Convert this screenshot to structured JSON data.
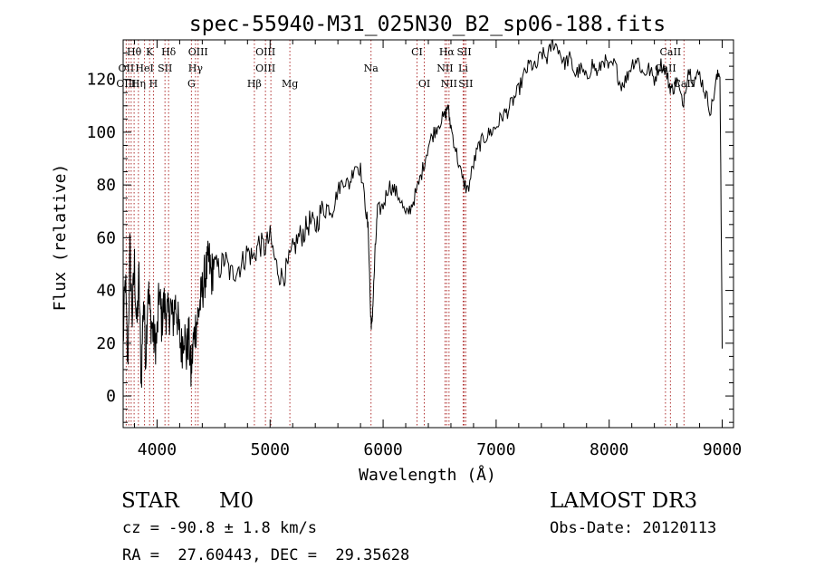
{
  "chart_data": {
    "type": "line",
    "title": "spec-55940-M31_025N30_B2_sp06-188.fits",
    "xlabel": "Wavelength (Å)",
    "ylabel": "Flux (relative)",
    "xlim": [
      3700,
      9100
    ],
    "ylim": [
      -12,
      135
    ],
    "xticks": [
      4000,
      5000,
      6000,
      7000,
      8000,
      9000
    ],
    "yticks": [
      0,
      20,
      40,
      60,
      80,
      100,
      120
    ],
    "series": [
      {
        "name": "flux",
        "x": [
          3700,
          3720,
          3740,
          3760,
          3780,
          3800,
          3820,
          3840,
          3860,
          3880,
          3900,
          3920,
          3940,
          3960,
          3980,
          4000,
          4020,
          4040,
          4060,
          4080,
          4100,
          4120,
          4140,
          4160,
          4180,
          4200,
          4220,
          4240,
          4260,
          4280,
          4300,
          4320,
          4340,
          4360,
          4380,
          4400,
          4420,
          4440,
          4460,
          4480,
          4500,
          4550,
          4600,
          4650,
          4700,
          4750,
          4800,
          4850,
          4900,
          4950,
          5000,
          5050,
          5100,
          5150,
          5200,
          5250,
          5300,
          5350,
          5400,
          5450,
          5500,
          5550,
          5600,
          5650,
          5700,
          5750,
          5800,
          5850,
          5870,
          5890,
          5900,
          5910,
          5930,
          5950,
          6000,
          6050,
          6100,
          6150,
          6200,
          6250,
          6300,
          6350,
          6400,
          6450,
          6500,
          6550,
          6570,
          6600,
          6650,
          6700,
          6750,
          6800,
          6850,
          6900,
          6950,
          7000,
          7050,
          7100,
          7150,
          7200,
          7250,
          7300,
          7350,
          7400,
          7450,
          7500,
          7550,
          7600,
          7650,
          7700,
          7750,
          7800,
          7850,
          7900,
          7950,
          8000,
          8050,
          8100,
          8150,
          8200,
          8250,
          8300,
          8350,
          8400,
          8450,
          8500,
          8530,
          8560,
          8600,
          8650,
          8700,
          8750,
          8800,
          8850,
          8900,
          8950,
          8980,
          9000
        ],
        "y": [
          20,
          45,
          10,
          55,
          30,
          50,
          25,
          45,
          5,
          38,
          15,
          42,
          30,
          25,
          20,
          22,
          40,
          28,
          35,
          32,
          30,
          34,
          28,
          36,
          30,
          22,
          18,
          26,
          15,
          24,
          8,
          20,
          26,
          30,
          35,
          40,
          45,
          48,
          52,
          45,
          50,
          48,
          52,
          46,
          48,
          50,
          55,
          52,
          58,
          56,
          60,
          50,
          45,
          48,
          55,
          60,
          62,
          66,
          64,
          70,
          72,
          70,
          78,
          82,
          80,
          88,
          86,
          70,
          62,
          30,
          26,
          35,
          55,
          70,
          72,
          80,
          78,
          75,
          68,
          72,
          78,
          86,
          95,
          100,
          104,
          106,
          110,
          102,
          92,
          82,
          78,
          88,
          95,
          98,
          100,
          102,
          106,
          108,
          112,
          116,
          122,
          126,
          124,
          130,
          128,
          134,
          132,
          126,
          128,
          122,
          124,
          120,
          126,
          122,
          128,
          124,
          126,
          118,
          120,
          126,
          128,
          122,
          124,
          120,
          126,
          124,
          118,
          116,
          120,
          110,
          124,
          120,
          122,
          115,
          108,
          120,
          123,
          18
        ]
      }
    ],
    "line_markers": [
      {
        "label": "Hθ",
        "wavelength": 3797,
        "row": 1
      },
      {
        "label": "K",
        "wavelength": 3934,
        "row": 1
      },
      {
        "label": "Hδ",
        "wavelength": 4102,
        "row": 1
      },
      {
        "label": "OIII",
        "wavelength": 4363,
        "row": 1
      },
      {
        "label": "OIII",
        "wavelength": 4959,
        "row": 1
      },
      {
        "label": "CI",
        "wavelength": 6300,
        "row": 1
      },
      {
        "label": "Hα",
        "wavelength": 6563,
        "row": 1
      },
      {
        "label": "SII",
        "wavelength": 6717,
        "row": 1
      },
      {
        "label": "CaII",
        "wavelength": 8542,
        "row": 1
      },
      {
        "label": "OII",
        "wavelength": 3727,
        "row": 2
      },
      {
        "label": "HeI",
        "wavelength": 3889,
        "row": 2
      },
      {
        "label": "SII",
        "wavelength": 4070,
        "row": 2
      },
      {
        "label": "Hγ",
        "wavelength": 4340,
        "row": 2
      },
      {
        "label": "OIII",
        "wavelength": 4959,
        "row": 2
      },
      {
        "label": "Na",
        "wavelength": 5893,
        "row": 2
      },
      {
        "label": "NII",
        "wavelength": 6548,
        "row": 2
      },
      {
        "label": "Li",
        "wavelength": 6708,
        "row": 2
      },
      {
        "label": "CaII",
        "wavelength": 8498,
        "row": 2
      },
      {
        "label": "OIII",
        "wavelength": 3727,
        "row": 3
      },
      {
        "label": "Hη",
        "wavelength": 3835,
        "row": 3
      },
      {
        "label": "H",
        "wavelength": 3968,
        "row": 3
      },
      {
        "label": "G",
        "wavelength": 4304,
        "row": 3
      },
      {
        "label": "Hβ",
        "wavelength": 4861,
        "row": 3
      },
      {
        "label": "Mg",
        "wavelength": 5175,
        "row": 3
      },
      {
        "label": "OI",
        "wavelength": 6364,
        "row": 3
      },
      {
        "label": "NII",
        "wavelength": 6583,
        "row": 3
      },
      {
        "label": "SII",
        "wavelength": 6731,
        "row": 3
      },
      {
        "label": "CaII",
        "wavelength": 8662,
        "row": 3
      }
    ],
    "marker_lines": [
      3727,
      3750,
      3771,
      3797,
      3835,
      3889,
      3934,
      3968,
      4070,
      4102,
      4304,
      4340,
      4363,
      4861,
      4959,
      5007,
      5175,
      5893,
      6300,
      6364,
      6548,
      6563,
      6583,
      6708,
      6717,
      6731,
      8498,
      8542,
      8662
    ],
    "colors": {
      "line": "#000000",
      "marker": "#b03030",
      "background": "#ffffff"
    }
  },
  "info": {
    "class_label": "STAR",
    "subclass": "M0",
    "cz": "cz = -90.8 ± 1.8 km/s",
    "coords": "RA =  27.60443, DEC =  29.35628",
    "survey": "LAMOST DR3",
    "obs_date": "Obs-Date: 20120113"
  }
}
